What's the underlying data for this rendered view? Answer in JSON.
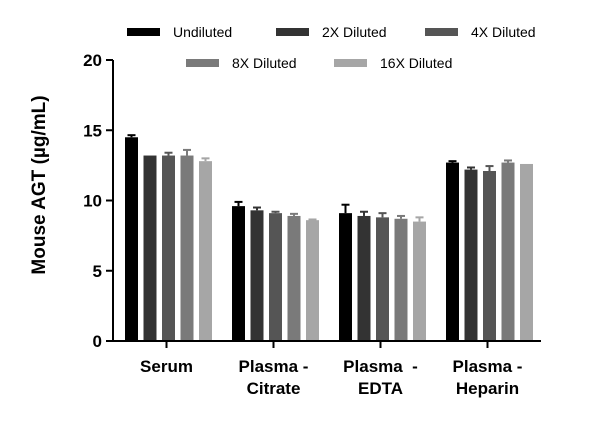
{
  "chart_data": {
    "type": "bar",
    "title": "",
    "xlabel": "",
    "ylabel": "Mouse AGT (µg/mL)",
    "ylim": [
      0,
      20
    ],
    "yticks": [
      0,
      5,
      10,
      15,
      20
    ],
    "categories": [
      [
        "Serum"
      ],
      [
        "Plasma -",
        "Citrate"
      ],
      [
        "Plasma  -",
        "EDTA"
      ],
      [
        "Plasma -",
        "Heparin"
      ]
    ],
    "series": [
      {
        "name": "Undiluted",
        "color": "#000000",
        "values": [
          14.5,
          9.6,
          9.1,
          12.7
        ],
        "errors": [
          0.15,
          0.3,
          0.6,
          0.1
        ]
      },
      {
        "name": "2X Diluted",
        "color": "#333333",
        "values": [
          13.2,
          9.3,
          8.9,
          12.2
        ],
        "errors": [
          0.0,
          0.2,
          0.3,
          0.15
        ]
      },
      {
        "name": "4X Diluted",
        "color": "#555555",
        "values": [
          13.2,
          9.1,
          8.8,
          12.1
        ],
        "errors": [
          0.2,
          0.1,
          0.3,
          0.35
        ]
      },
      {
        "name": "8X Diluted",
        "color": "#7a7a7a",
        "values": [
          13.2,
          8.9,
          8.7,
          12.7
        ],
        "errors": [
          0.4,
          0.15,
          0.2,
          0.15
        ]
      },
      {
        "name": "16X Diluted",
        "color": "#a6a6a6",
        "values": [
          12.8,
          8.6,
          8.5,
          12.6
        ],
        "errors": [
          0.2,
          0.05,
          0.3,
          0.0
        ]
      }
    ],
    "legend_position": "top"
  }
}
